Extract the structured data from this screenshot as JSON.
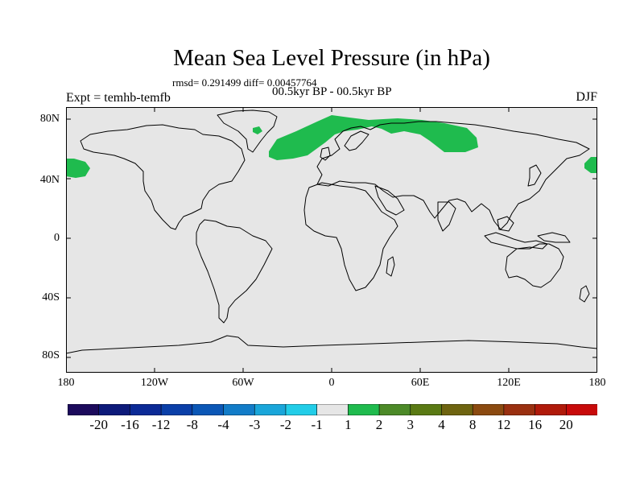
{
  "title": "Mean Sea Level Pressure (in hPa)",
  "stats": "rmsd= 0.291499 diff= 0.00457764",
  "period": "00.5kyr BP - 00.5kyr BP",
  "experiment": "Expt = temhb-temfb",
  "season": "DJF",
  "axes": {
    "y_labels": [
      "80N",
      "40N",
      "0",
      "40S",
      "80S"
    ],
    "x_labels": [
      "180",
      "120W",
      "60W",
      "0",
      "60E",
      "120E",
      "180"
    ]
  },
  "colorbar": {
    "labels": [
      "-20",
      "-16",
      "-12",
      "-8",
      "-4",
      "-3",
      "-2",
      "-1",
      "1",
      "2",
      "3",
      "4",
      "8",
      "12",
      "16",
      "20"
    ],
    "colors": [
      "#1c0a5c",
      "#0d1a7a",
      "#0b2a96",
      "#0a3fa8",
      "#0b57b6",
      "#127cc8",
      "#1aa6da",
      "#22cde8",
      "#e6e6e6",
      "#1fbb4e",
      "#4c8a28",
      "#5a7a14",
      "#6e6410",
      "#8b4a10",
      "#9a3010",
      "#b01a0a",
      "#c80a0a"
    ]
  },
  "map_colors": {
    "background": "#e6e6e6",
    "positive_anomaly": "#1fbb4e",
    "coast": "#000000"
  }
}
